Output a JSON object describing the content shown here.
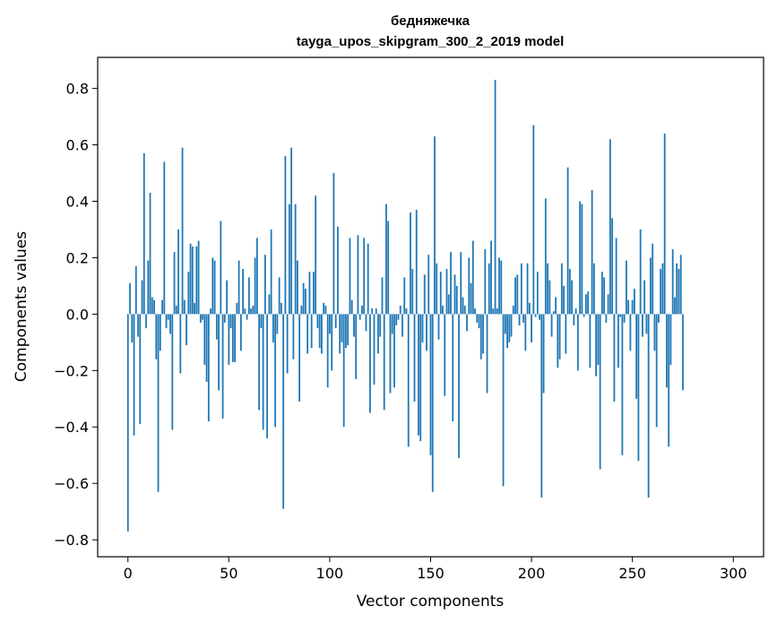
{
  "chart_data": {
    "type": "bar",
    "title": "бедняжечка",
    "subtitle": "tayga_upos_skipgram_300_2_2019 model",
    "xlabel": "Vector components",
    "ylabel": "Components values",
    "xlim": [
      -15,
      315
    ],
    "ylim": [
      -0.86,
      0.91
    ],
    "xticks": [
      0,
      50,
      100,
      150,
      200,
      250,
      300
    ],
    "xtick_labels": [
      "0",
      "50",
      "100",
      "150",
      "200",
      "250",
      "300"
    ],
    "yticks": [
      -0.8,
      -0.6,
      -0.4,
      -0.2,
      0.0,
      0.2,
      0.4,
      0.6,
      0.8
    ],
    "ytick_labels": [
      "−0.8",
      "−0.6",
      "−0.4",
      "−0.2",
      "0.0",
      "0.2",
      "0.4",
      "0.6",
      "0.8"
    ],
    "grid": false,
    "bar_color": "#1f77b4",
    "values": [
      -0.77,
      0.11,
      -0.1,
      -0.43,
      0.17,
      -0.08,
      -0.39,
      0.12,
      0.57,
      -0.05,
      0.19,
      0.43,
      0.06,
      0.05,
      -0.16,
      -0.63,
      -0.13,
      0.05,
      0.54,
      -0.05,
      -0.02,
      -0.07,
      -0.41,
      0.22,
      0.03,
      0.3,
      -0.21,
      0.59,
      0.05,
      -0.11,
      0.15,
      0.25,
      0.24,
      0.04,
      0.24,
      0.26,
      -0.03,
      -0.02,
      -0.18,
      -0.24,
      -0.38,
      0.02,
      0.2,
      0.19,
      -0.09,
      -0.27,
      0.33,
      -0.37,
      -0.03,
      0.12,
      -0.18,
      -0.05,
      -0.17,
      -0.17,
      0.04,
      0.19,
      -0.13,
      0.16,
      0.02,
      -0.02,
      0.13,
      0.02,
      0.03,
      0.2,
      0.27,
      -0.34,
      -0.05,
      -0.41,
      0.21,
      -0.44,
      0.07,
      0.3,
      -0.1,
      -0.4,
      -0.07,
      0.13,
      0.04,
      -0.69,
      0.56,
      -0.21,
      0.39,
      0.59,
      -0.16,
      0.39,
      0.19,
      -0.31,
      0.03,
      0.11,
      0.09,
      -0.14,
      0.15,
      -0.12,
      0.15,
      0.42,
      -0.05,
      -0.12,
      -0.14,
      0.04,
      0.03,
      -0.26,
      -0.07,
      -0.2,
      0.5,
      -0.05,
      0.31,
      -0.14,
      -0.1,
      -0.4,
      -0.12,
      -0.11,
      0.27,
      0.05,
      -0.08,
      -0.23,
      0.28,
      -0.02,
      0.03,
      0.27,
      -0.06,
      0.25,
      -0.35,
      0.02,
      -0.25,
      0.02,
      -0.14,
      -0.08,
      0.13,
      -0.34,
      0.39,
      0.33,
      -0.28,
      -0.07,
      -0.26,
      -0.04,
      -0.02,
      0.03,
      -0.08,
      0.13,
      0.02,
      -0.47,
      0.36,
      0.16,
      -0.31,
      0.37,
      -0.43,
      -0.45,
      -0.1,
      0.14,
      -0.13,
      0.21,
      -0.5,
      -0.63,
      0.63,
      0.18,
      -0.09,
      0.15,
      0.03,
      -0.29,
      0.16,
      0.07,
      0.22,
      -0.38,
      0.14,
      0.1,
      -0.51,
      0.22,
      0.06,
      0.03,
      -0.06,
      0.2,
      0.11,
      0.26,
      0.02,
      -0.03,
      -0.05,
      -0.16,
      -0.14,
      0.23,
      -0.28,
      0.18,
      0.26,
      0.02,
      0.83,
      0.02,
      0.2,
      0.19,
      -0.61,
      -0.07,
      -0.12,
      -0.1,
      -0.08,
      0.03,
      0.13,
      0.14,
      -0.04,
      0.18,
      -0.03,
      -0.13,
      0.18,
      0.04,
      -0.1,
      0.67,
      -0.01,
      0.15,
      -0.02,
      -0.65,
      -0.28,
      0.41,
      0.18,
      0.12,
      -0.08,
      0.01,
      0.06,
      -0.19,
      -0.16,
      0.18,
      0.1,
      -0.14,
      0.52,
      0.16,
      0.12,
      -0.04,
      0.02,
      -0.2,
      0.4,
      0.39,
      -0.01,
      0.07,
      0.08,
      -0.19,
      0.44,
      0.18,
      -0.22,
      -0.18,
      -0.55,
      0.15,
      0.13,
      -0.03,
      0.07,
      0.62,
      0.34,
      -0.31,
      0.27,
      -0.19,
      -0.01,
      -0.5,
      -0.03,
      0.19,
      0.05,
      -0.13,
      0.05,
      0.09,
      -0.3,
      -0.52,
      0.3,
      -0.08,
      0.12,
      -0.07,
      -0.65,
      0.2,
      0.25,
      -0.13,
      -0.4,
      -0.03,
      0.16,
      0.18,
      0.64,
      -0.26,
      -0.47,
      -0.18,
      0.23,
      0.06,
      0.18,
      0.16,
      0.21,
      -0.27
    ]
  }
}
